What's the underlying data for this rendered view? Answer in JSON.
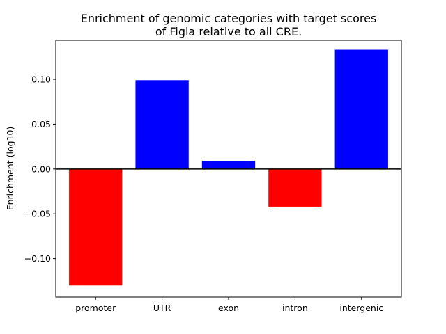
{
  "chart_data": {
    "type": "bar",
    "title_lines": [
      "Enrichment of genomic categories with target scores",
      "of Figla relative to all CRE."
    ],
    "xlabel": "",
    "ylabel": "Enrichment (log10)",
    "categories": [
      "promoter",
      "UTR",
      "exon",
      "intron",
      "intergenic"
    ],
    "values": [
      -0.13,
      0.099,
      0.009,
      -0.042,
      0.133
    ],
    "colors": [
      "#ff0000",
      "#0000ff",
      "#0000ff",
      "#ff0000",
      "#0000ff"
    ],
    "ylim": [
      -0.143,
      0.1435
    ],
    "yticks": [
      -0.1,
      -0.05,
      0.0,
      0.05,
      0.1
    ],
    "ytick_labels": [
      "−0.10",
      "−0.05",
      "0.00",
      "0.05",
      "0.10"
    ],
    "zero_line": true,
    "grid": false
  }
}
